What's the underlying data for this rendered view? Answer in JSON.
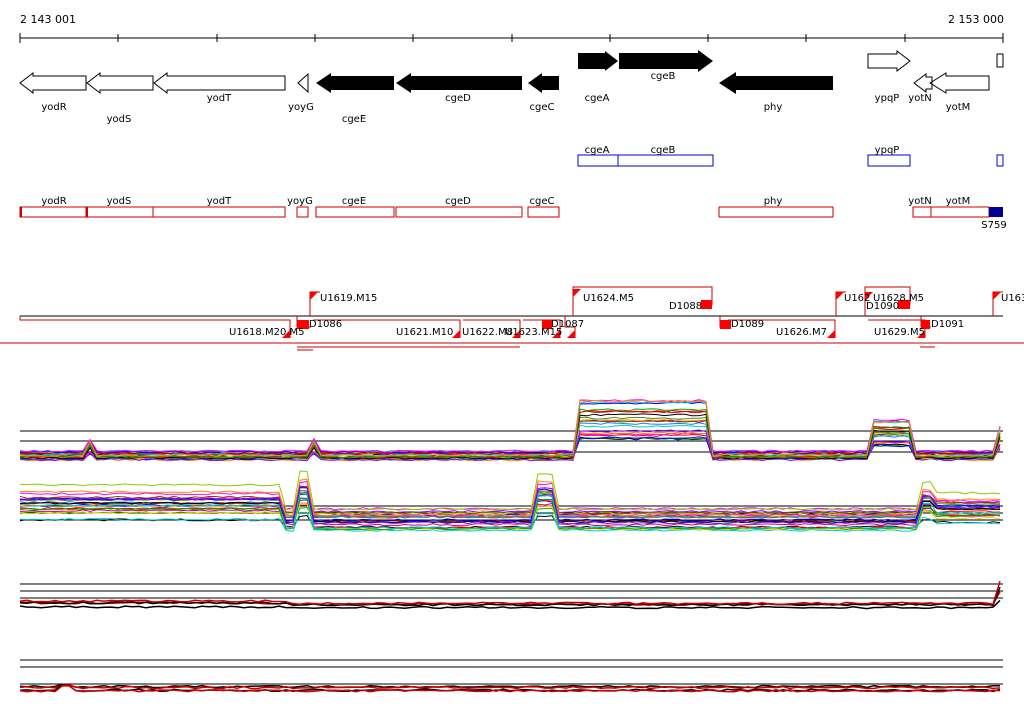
{
  "browser": {
    "coord_start": "2 143 001",
    "coord_end": "2 153 000",
    "colors": {
      "gene_fill": "#000000",
      "annotation_outline": "#cc0000",
      "blue_outline": "#0000cc",
      "region_marker": "#ff0000",
      "sigma_fill": "#000099"
    }
  },
  "genes_forward": [
    {
      "name": "cgeA",
      "shape": "forward-filled-arrow"
    },
    {
      "name": "cgeB",
      "shape": "forward-filled-arrow"
    },
    {
      "name": "ypqP",
      "shape": "forward-outline-arrow"
    }
  ],
  "genes_reverse": [
    {
      "name": "yodR"
    },
    {
      "name": "yodS"
    },
    {
      "name": "yodT"
    },
    {
      "name": "yoyG"
    },
    {
      "name": "cgeE"
    },
    {
      "name": "cgeD"
    },
    {
      "name": "cgeC"
    },
    {
      "name": "phy"
    },
    {
      "name": "yotN"
    },
    {
      "name": "yotM"
    }
  ],
  "blue_annotations": [
    {
      "name": "cgeA"
    },
    {
      "name": "cgeB"
    },
    {
      "name": "ypqP"
    }
  ],
  "red_annotations": [
    {
      "name": "yodR"
    },
    {
      "name": "yodS"
    },
    {
      "name": "yodT"
    },
    {
      "name": "yoyG"
    },
    {
      "name": "cgeE"
    },
    {
      "name": "cgeD"
    },
    {
      "name": "cgeC"
    },
    {
      "name": "phy"
    },
    {
      "name": "yotN"
    },
    {
      "name": "yotM"
    }
  ],
  "sigma_label": "S759",
  "upper_regions": [
    {
      "label": "U1619.M15"
    },
    {
      "label": "U1624.M5"
    },
    {
      "label": "D1088"
    },
    {
      "label": "U162"
    },
    {
      "label": "U1628.M5"
    },
    {
      "label": "D1090"
    },
    {
      "label": "U163"
    }
  ],
  "lower_regions": [
    {
      "label": "U1618.M20.M5"
    },
    {
      "label": "D1086"
    },
    {
      "label": "U1621.M10"
    },
    {
      "label": "U1622.M8"
    },
    {
      "label": "U1623.M15"
    },
    {
      "label": "D1087"
    },
    {
      "label": "D1089"
    },
    {
      "label": "U1626.M7"
    },
    {
      "label": "U1629.M5"
    },
    {
      "label": "D1091"
    }
  ]
}
